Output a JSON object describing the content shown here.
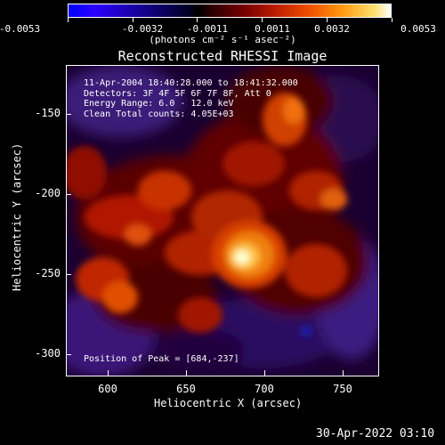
{
  "colorbar": {
    "ticks": [
      "-0.0053",
      "-0.0032",
      "-0.0011",
      "0.0011",
      "0.0032",
      "0.0053"
    ],
    "units_label": "(photons cm⁻² s⁻¹ asec⁻²)"
  },
  "plot": {
    "title": "Reconstructed RHESSI Image",
    "info_lines": [
      "11-Apr-2004 18:40:28.000 to 18:41:32.000",
      "Detectors: 3F 4F 5F 6F 7F 8F, Att 0",
      "Energy Range: 6.0 - 12.0 keV",
      "Clean    Total counts: 4.05E+03"
    ],
    "peak_label": "Position of Peak = [684,-237]",
    "xlabel": "Heliocentric X (arcsec)",
    "ylabel": "Heliocentric Y (arcsec)",
    "xticks": [
      "600",
      "650",
      "700",
      "750"
    ],
    "yticks": [
      "-150",
      "-200",
      "-250",
      "-300"
    ]
  },
  "timestamp": "30-Apr-2022 03:10"
}
